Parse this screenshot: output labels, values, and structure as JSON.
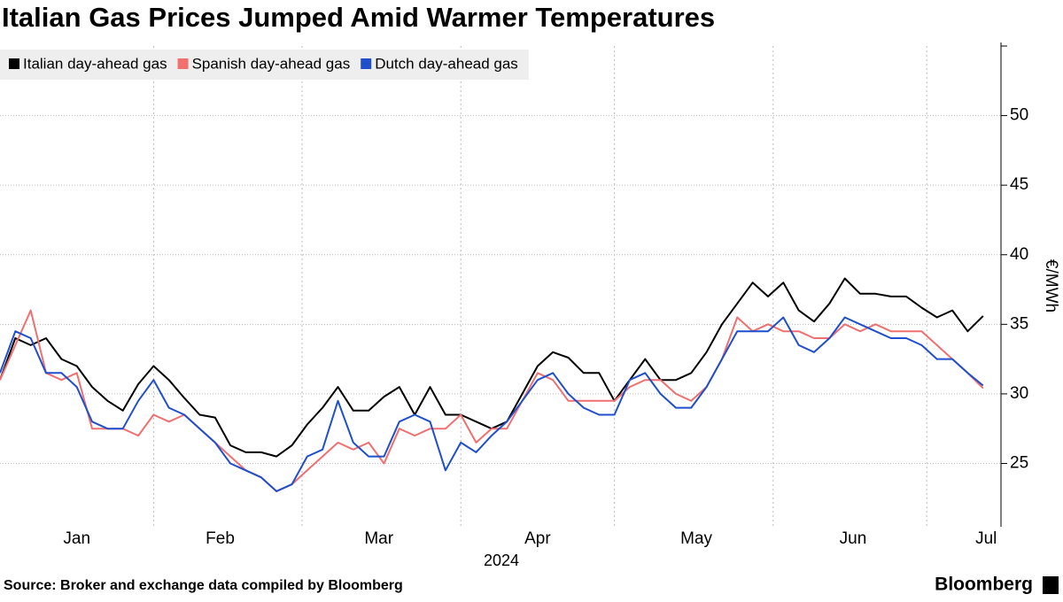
{
  "chart_data": {
    "type": "line",
    "title": "Italian Gas Prices Jumped Amid Warmer Temperatures",
    "source": "Source: Broker and exchange data compiled by Bloomberg",
    "brand": "Bloomberg",
    "ylabel": "€/MWh",
    "xlabel": "2024",
    "x": [
      2,
      5,
      8,
      11,
      14,
      17,
      20,
      23,
      26,
      29,
      32,
      35,
      38,
      41,
      44,
      47,
      50,
      53,
      56,
      59,
      62,
      65,
      68,
      71,
      74,
      77,
      80,
      83,
      86,
      89,
      92,
      95,
      98,
      101,
      104,
      107,
      110,
      113,
      116,
      119,
      122,
      125,
      128,
      131,
      134,
      137,
      140,
      143,
      146,
      149,
      152,
      155,
      158,
      161,
      164,
      167,
      170,
      173,
      176,
      179,
      182,
      185,
      188,
      191,
      194
    ],
    "series": [
      {
        "name": "Italian day-ahead gas",
        "color": "#000000",
        "values": [
          31,
          34,
          33.5,
          34,
          32.5,
          32,
          30.5,
          29.5,
          28.8,
          30.7,
          32,
          31,
          29.7,
          28.5,
          28.3,
          26.3,
          25.8,
          25.8,
          25.5,
          26.3,
          27.8,
          29,
          30.5,
          28.8,
          28.8,
          29.8,
          30.5,
          28.5,
          30.5,
          28.5,
          28.5,
          28,
          27.5,
          28,
          30,
          32,
          33,
          32.6,
          31.5,
          31.5,
          29.5,
          31,
          32.5,
          31,
          31,
          31.5,
          33,
          35,
          36.5,
          38,
          37,
          38,
          36,
          35.2,
          36.5,
          38.3,
          37.2,
          37.2,
          37,
          37,
          36.2,
          35.5,
          36,
          34.5,
          35.6
        ]
      },
      {
        "name": "Spanish day-ahead gas",
        "color": "#f07070",
        "values": [
          31,
          33.5,
          36,
          31.5,
          31,
          31.5,
          27.5,
          27.5,
          27.5,
          27,
          28.5,
          28,
          28.5,
          27.5,
          26.5,
          25.5,
          24.5,
          24,
          23,
          23.5,
          24.5,
          25.5,
          26.5,
          26,
          26.5,
          25,
          27.5,
          27,
          27.5,
          27.5,
          28.5,
          26.5,
          27.5,
          27.5,
          29.5,
          31.5,
          31,
          29.5,
          29.5,
          29.5,
          29.5,
          30.5,
          31,
          31,
          30,
          29.5,
          30.5,
          32.5,
          35.5,
          34.5,
          35,
          34.5,
          34.5,
          34,
          34,
          35,
          34.5,
          35,
          34.5,
          34.5,
          34.5,
          33.5,
          32.5,
          31.5,
          30.4
        ]
      },
      {
        "name": "Dutch day-ahead gas",
        "color": "#1f4fcc",
        "values": [
          31.5,
          34.5,
          34,
          31.5,
          31.5,
          30.5,
          28,
          27.5,
          27.5,
          29.5,
          31,
          29,
          28.5,
          27.5,
          26.5,
          25,
          24.5,
          24,
          23,
          23.5,
          25.5,
          26,
          29.5,
          26.5,
          25.5,
          25.5,
          28,
          28.5,
          28,
          24.5,
          26.5,
          25.8,
          27,
          28,
          29.5,
          31,
          31.5,
          30,
          29,
          28.5,
          28.5,
          31,
          31.5,
          30,
          29,
          29,
          30.5,
          32.5,
          34.5,
          34.5,
          34.5,
          35.5,
          33.5,
          33,
          34,
          35.5,
          35,
          34.5,
          34,
          34,
          33.5,
          32.5,
          32.5,
          31.5,
          30.6
        ]
      }
    ],
    "xlim": [
      2,
      197.5
    ],
    "xticks": [
      {
        "value": 17,
        "label": "Jan"
      },
      {
        "value": 45,
        "label": "Feb"
      },
      {
        "value": 76,
        "label": "Mar"
      },
      {
        "value": 107,
        "label": "Apr"
      },
      {
        "value": 138,
        "label": "May"
      },
      {
        "value": 168.6,
        "label": "Jun"
      },
      {
        "value": 194.6,
        "label": "Jul"
      }
    ],
    "xgrid": [
      32,
      61,
      92,
      122,
      153,
      183
    ],
    "ylim": [
      20.45,
      55
    ],
    "yticks": [
      25,
      30,
      35,
      40,
      45,
      50
    ],
    "grid": true,
    "legend": "top-left"
  }
}
